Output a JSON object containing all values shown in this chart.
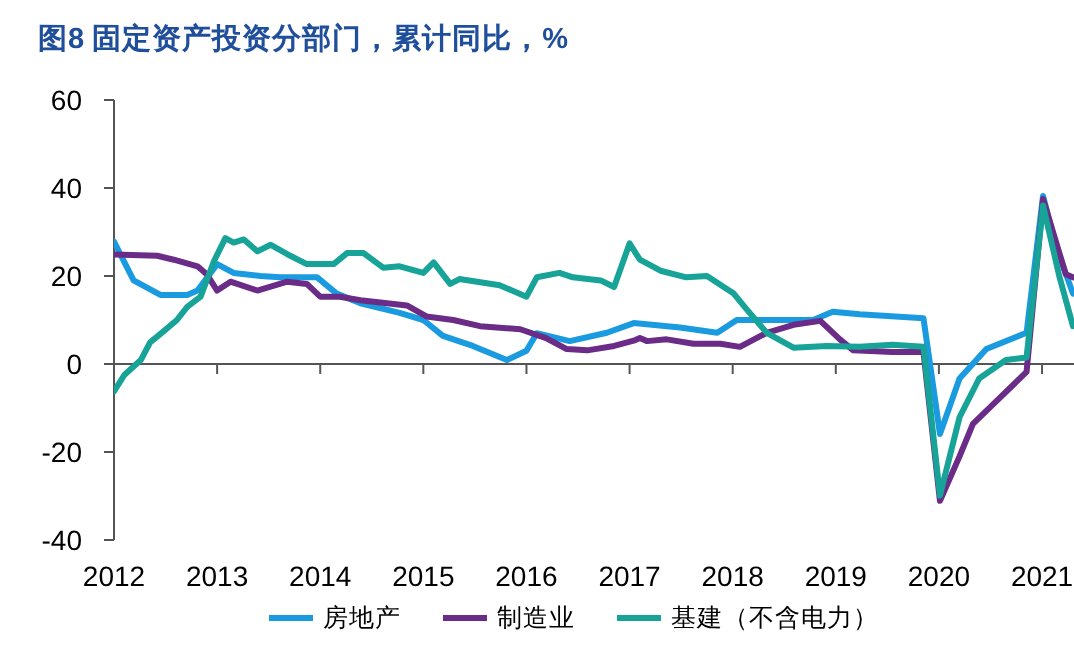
{
  "chart_data": {
    "type": "line",
    "title": "图8  固定资产投资分部门，累计同比，%",
    "xlim": [
      2012,
      2021.31
    ],
    "xticks": [
      2012,
      2013,
      2014,
      2015,
      2016,
      2017,
      2018,
      2019,
      2020,
      2021
    ],
    "ylim": [
      -40,
      60
    ],
    "yticks": [
      -40,
      -20,
      0,
      20,
      40,
      60
    ],
    "legend": "bottom",
    "series": [
      {
        "name": "房地产",
        "color": "#1a9be0",
        "x": [
          2012.0,
          2012.19,
          2012.45,
          2012.71,
          2012.81,
          2013.0,
          2013.16,
          2013.42,
          2013.61,
          2013.97,
          2014.16,
          2014.39,
          2014.77,
          2015.0,
          2015.19,
          2015.48,
          2015.81,
          2016.0,
          2016.1,
          2016.42,
          2016.78,
          2017.04,
          2017.49,
          2017.85,
          2018.04,
          2018.39,
          2018.78,
          2018.97,
          2019.23,
          2019.85,
          2020.01,
          2020.2,
          2020.46,
          2020.85,
          2021.01,
          2021.14,
          2021.3
        ],
        "values": [
          27.8,
          19,
          15.7,
          15.7,
          16.7,
          22.7,
          20.7,
          20,
          19.7,
          19.7,
          16,
          13.8,
          11.6,
          10,
          6.4,
          4.1,
          0.9,
          3,
          7,
          5.2,
          7.1,
          9.3,
          8.3,
          7.1,
          10,
          10,
          10,
          11.9,
          11.3,
          10.4,
          -15.9,
          -3.3,
          3.4,
          7.1,
          38.2,
          26.4,
          16
        ]
      },
      {
        "name": "制造业",
        "color": "#6a2c86",
        "x": [
          2012.0,
          2012.42,
          2012.58,
          2012.81,
          2012.9,
          2013.0,
          2013.13,
          2013.39,
          2013.68,
          2013.87,
          2014.0,
          2014.19,
          2014.39,
          2014.84,
          2015.03,
          2015.29,
          2015.55,
          2015.94,
          2016.19,
          2016.39,
          2016.59,
          2016.85,
          2017.04,
          2017.1,
          2017.17,
          2017.36,
          2017.62,
          2017.88,
          2018.07,
          2018.33,
          2018.59,
          2018.85,
          2019.04,
          2019.17,
          2019.55,
          2019.85,
          2020.01,
          2020.2,
          2020.33,
          2020.59,
          2020.85,
          2021.01,
          2021.23,
          2021.3
        ],
        "values": [
          24.9,
          24.6,
          23.7,
          22.2,
          20.4,
          16.7,
          18.7,
          16.7,
          18.7,
          18.2,
          15.3,
          15.3,
          14.5,
          13.3,
          10.8,
          10,
          8.6,
          7.9,
          5.9,
          3.4,
          3.1,
          4.1,
          5.3,
          5.9,
          5.2,
          5.6,
          4.6,
          4.6,
          3.9,
          7.1,
          8.9,
          9.8,
          5.6,
          3.1,
          2.7,
          2.7,
          -31.1,
          -21,
          -13.6,
          -7.7,
          -1.8,
          37.5,
          20.4,
          19.7
        ]
      },
      {
        "name": "基建（不含电力）",
        "color": "#17a398",
        "x": [
          2012.0,
          2012.1,
          2012.26,
          2012.35,
          2012.48,
          2012.61,
          2012.71,
          2012.84,
          2012.97,
          2013.08,
          2013.16,
          2013.26,
          2013.39,
          2013.52,
          2013.71,
          2013.87,
          2014.13,
          2014.26,
          2014.42,
          2014.61,
          2014.77,
          2015.0,
          2015.1,
          2015.26,
          2015.35,
          2015.74,
          2016.0,
          2016.1,
          2016.32,
          2016.45,
          2016.72,
          2016.85,
          2017.0,
          2017.1,
          2017.3,
          2017.55,
          2017.75,
          2018.01,
          2018.14,
          2018.33,
          2018.59,
          2018.91,
          2019.23,
          2019.55,
          2019.85,
          2020.01,
          2020.2,
          2020.39,
          2020.65,
          2020.85,
          2021.01,
          2021.17,
          2021.3
        ],
        "values": [
          -6.2,
          -2.5,
          0.9,
          4.9,
          7.4,
          10,
          13,
          15.3,
          23.4,
          28.6,
          27.6,
          28.3,
          25.6,
          27.1,
          24.6,
          22.7,
          22.7,
          25.2,
          25.2,
          21.9,
          22.2,
          20.7,
          23.1,
          18.2,
          19.3,
          17.9,
          15.3,
          19.7,
          20.7,
          19.7,
          19,
          17.5,
          27.4,
          23.7,
          21.2,
          19.7,
          20,
          16,
          12.3,
          7.1,
          3.7,
          4.1,
          3.9,
          4.4,
          3.9,
          -29.9,
          -12.1,
          -3.3,
          0.9,
          1.5,
          36,
          19.7,
          8.6
        ]
      }
    ]
  }
}
